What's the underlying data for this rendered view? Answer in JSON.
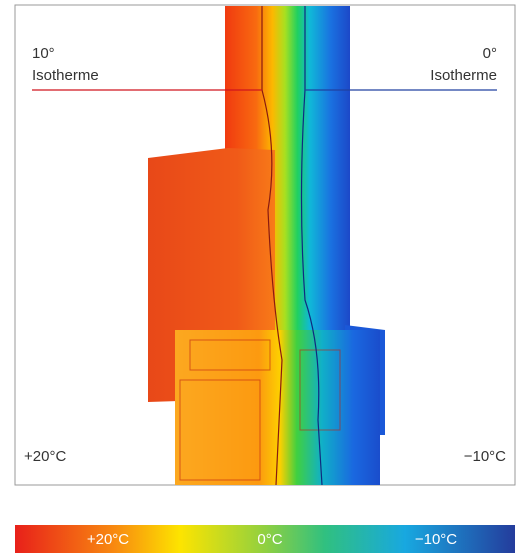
{
  "labels": {
    "left_isotherm": {
      "value": "10°",
      "name": "Isotherme"
    },
    "right_isotherm": {
      "value": "0°",
      "name": "Isotherme"
    },
    "inside_temp": "+20°C",
    "outside_temp": "−10°C"
  },
  "color_scale": [
    "+20°C",
    "0°C",
    "−10°C"
  ]
}
